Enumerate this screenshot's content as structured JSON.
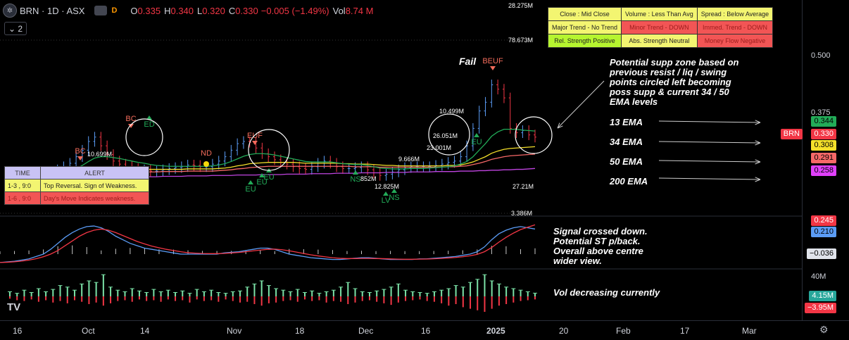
{
  "header": {
    "symbol": "BRN · 1D · ASX",
    "logo_glyph": "✲",
    "d_label": "D",
    "o_label": "O",
    "o_value": "0.335",
    "h_label": "H",
    "h_value": "0.340",
    "l_label": "L",
    "l_value": "0.320",
    "c_label": "C",
    "c_value": "0.330",
    "change": "−0.005 (−1.49%)",
    "vol_label": "Vol",
    "vol_value": "8.74 M",
    "collapse_icon": "chevron-down",
    "collapse_count": "2"
  },
  "status_table": [
    [
      {
        "text": "Close : Mid Close",
        "bg": "#f3f571",
        "fg": "#222"
      },
      {
        "text": "Volume : Less Than Avg",
        "bg": "#f3f571",
        "fg": "#222"
      },
      {
        "text": "Spread : Below Average",
        "bg": "#f3f571",
        "fg": "#222"
      }
    ],
    [
      {
        "text": "Major Trend - No Trend",
        "bg": "#f3f571",
        "fg": "#222"
      },
      {
        "text": "Minor Trend - DOWN",
        "bg": "#f25555",
        "fg": "#9b1c1c"
      },
      {
        "text": "Immed. Trend - DOWN",
        "bg": "#f25555",
        "fg": "#9b1c1c"
      }
    ],
    [
      {
        "text": "Rel. Strength Positive",
        "bg": "#b6f52f",
        "fg": "#222"
      },
      {
        "text": "Abs. Strength Neutral",
        "bg": "#f3f571",
        "fg": "#222"
      },
      {
        "text": "Money Flow Negative",
        "bg": "#f25555",
        "fg": "#9b1c1c"
      }
    ]
  ],
  "alert_table": {
    "headers": [
      "TIME",
      "ALERT"
    ],
    "rows": [
      {
        "time": "1-3  , 9:0",
        "alert": "Top Reversal. Sign of Weakness.",
        "bg": "#f3f571",
        "fg": "#222"
      },
      {
        "time": "1-6  , 9:0",
        "alert": "Day's Move Indicates weakness.",
        "bg": "#f25555",
        "fg": "#9b1c1c"
      }
    ],
    "header_bg": "#c9c3f5"
  },
  "annotations": {
    "zone_text": [
      "Potential supp zone based on",
      "previous resist / liq / swing",
      "points circled left becoming",
      "poss supp & current 34 / 50",
      "EMA levels"
    ],
    "ema_13": "13 EMA",
    "ema_34": "34 EMA",
    "ema_50": "50 EMA",
    "ema_200": "200 EMA",
    "macd_text": [
      "Signal crossed down.",
      "Potential ST p/back.",
      "Overall above centre",
      "wider view."
    ],
    "vol_text": "Vol decreasing currently",
    "fail": "Fail"
  },
  "price_scale": {
    "ticks": [
      "0.500",
      "0.375"
    ],
    "symbol_badge": "BRN",
    "badges": [
      {
        "label": "0.344",
        "color": "#22ab58",
        "fg": "#000"
      },
      {
        "label": "0.330",
        "color": "#f23645",
        "fg": "#fff"
      },
      {
        "label": "0.308",
        "color": "#f5e02a",
        "fg": "#000"
      },
      {
        "label": "0.291",
        "color": "#f76868",
        "fg": "#000"
      },
      {
        "label": "0.258",
        "color": "#e040fb",
        "fg": "#000"
      }
    ],
    "macd_badges": [
      {
        "label": "0.245",
        "color": "#f23645",
        "fg": "#fff"
      },
      {
        "label": "0.210",
        "color": "#5b9cf6",
        "fg": "#000"
      },
      {
        "label": "−0.036",
        "color": "#e0e3eb",
        "fg": "#000"
      }
    ],
    "vol_tick": "40M",
    "vol_badges": [
      {
        "label": "4.15M",
        "color": "#26a69a",
        "fg": "#fff"
      },
      {
        "label": "−3.95M",
        "color": "#f23645",
        "fg": "#fff"
      }
    ]
  },
  "x_axis": [
    "16",
    "Oct",
    "14",
    "Nov",
    "18",
    "Dec",
    "16",
    "2025",
    "20",
    "Feb",
    "17",
    "Mar"
  ],
  "chart_data": {
    "type": "candlestick",
    "price_ylim": [
      0.16,
      0.58
    ],
    "closes": [
      0.225,
      0.222,
      0.225,
      0.228,
      0.234,
      0.24,
      0.245,
      0.255,
      0.262,
      0.27,
      0.285,
      0.3,
      0.32,
      0.33,
      0.31,
      0.29,
      0.275,
      0.268,
      0.262,
      0.258,
      0.255,
      0.255,
      0.252,
      0.252,
      0.255,
      0.258,
      0.26,
      0.262,
      0.266,
      0.265,
      0.262,
      0.262,
      0.268,
      0.275,
      0.285,
      0.3,
      0.315,
      0.32,
      0.318,
      0.305,
      0.292,
      0.285,
      0.278,
      0.272,
      0.268,
      0.262,
      0.258,
      0.256,
      0.262,
      0.27,
      0.275,
      0.27,
      0.262,
      0.258,
      0.258,
      0.26,
      0.262,
      0.255,
      0.248,
      0.242,
      0.245,
      0.25,
      0.255,
      0.26,
      0.262,
      0.262,
      0.262,
      0.262,
      0.265,
      0.268,
      0.272,
      0.275,
      0.285,
      0.31,
      0.35,
      0.39,
      0.41,
      0.45,
      0.44,
      0.42,
      0.35,
      0.34,
      0.345,
      0.335,
      0.33
    ],
    "ema13": [
      0.228,
      0.228,
      0.228,
      0.229,
      0.231,
      0.234,
      0.236,
      0.24,
      0.245,
      0.25,
      0.257,
      0.265,
      0.274,
      0.282,
      0.285,
      0.285,
      0.283,
      0.281,
      0.278,
      0.275,
      0.272,
      0.27,
      0.267,
      0.265,
      0.264,
      0.263,
      0.263,
      0.263,
      0.263,
      0.263,
      0.263,
      0.263,
      0.264,
      0.266,
      0.269,
      0.274,
      0.28,
      0.286,
      0.29,
      0.292,
      0.292,
      0.291,
      0.289,
      0.286,
      0.283,
      0.28,
      0.277,
      0.274,
      0.273,
      0.273,
      0.273,
      0.273,
      0.271,
      0.269,
      0.268,
      0.267,
      0.267,
      0.265,
      0.262,
      0.259,
      0.258,
      0.257,
      0.257,
      0.257,
      0.258,
      0.258,
      0.258,
      0.259,
      0.26,
      0.261,
      0.262,
      0.264,
      0.268,
      0.274,
      0.285,
      0.3,
      0.315,
      0.332,
      0.342,
      0.348,
      0.348,
      0.348,
      0.346,
      0.345,
      0.344
    ],
    "ema34": [
      0.23,
      0.23,
      0.23,
      0.23,
      0.23,
      0.231,
      0.232,
      0.233,
      0.235,
      0.237,
      0.239,
      0.242,
      0.246,
      0.25,
      0.252,
      0.254,
      0.255,
      0.256,
      0.256,
      0.256,
      0.256,
      0.256,
      0.256,
      0.256,
      0.256,
      0.256,
      0.256,
      0.256,
      0.257,
      0.257,
      0.257,
      0.257,
      0.257,
      0.258,
      0.259,
      0.261,
      0.264,
      0.266,
      0.269,
      0.27,
      0.271,
      0.272,
      0.272,
      0.272,
      0.272,
      0.272,
      0.271,
      0.27,
      0.27,
      0.27,
      0.27,
      0.27,
      0.27,
      0.269,
      0.269,
      0.268,
      0.268,
      0.268,
      0.267,
      0.266,
      0.265,
      0.265,
      0.264,
      0.264,
      0.264,
      0.264,
      0.264,
      0.264,
      0.264,
      0.264,
      0.265,
      0.265,
      0.266,
      0.269,
      0.273,
      0.279,
      0.285,
      0.293,
      0.298,
      0.302,
      0.304,
      0.305,
      0.306,
      0.307,
      0.308
    ],
    "ema50": [
      0.23,
      0.23,
      0.23,
      0.23,
      0.23,
      0.23,
      0.231,
      0.232,
      0.233,
      0.234,
      0.236,
      0.238,
      0.24,
      0.243,
      0.245,
      0.246,
      0.247,
      0.248,
      0.249,
      0.249,
      0.25,
      0.25,
      0.25,
      0.25,
      0.251,
      0.251,
      0.251,
      0.251,
      0.252,
      0.252,
      0.252,
      0.252,
      0.252,
      0.253,
      0.254,
      0.255,
      0.257,
      0.258,
      0.26,
      0.261,
      0.262,
      0.263,
      0.263,
      0.263,
      0.263,
      0.263,
      0.263,
      0.263,
      0.263,
      0.263,
      0.263,
      0.263,
      0.263,
      0.263,
      0.263,
      0.262,
      0.262,
      0.262,
      0.262,
      0.261,
      0.261,
      0.261,
      0.261,
      0.261,
      0.261,
      0.261,
      0.261,
      0.261,
      0.261,
      0.261,
      0.262,
      0.262,
      0.263,
      0.264,
      0.267,
      0.27,
      0.274,
      0.279,
      0.282,
      0.285,
      0.287,
      0.288,
      0.289,
      0.29,
      0.291
    ],
    "ema200": [
      0.236,
      0.236,
      0.236,
      0.236,
      0.236,
      0.236,
      0.236,
      0.236,
      0.236,
      0.236,
      0.236,
      0.236,
      0.237,
      0.237,
      0.237,
      0.237,
      0.238,
      0.238,
      0.238,
      0.238,
      0.239,
      0.239,
      0.239,
      0.239,
      0.24,
      0.24,
      0.24,
      0.24,
      0.241,
      0.241,
      0.241,
      0.241,
      0.242,
      0.242,
      0.242,
      0.242,
      0.243,
      0.243,
      0.243,
      0.243,
      0.244,
      0.244,
      0.244,
      0.244,
      0.245,
      0.245,
      0.245,
      0.245,
      0.246,
      0.246,
      0.246,
      0.246,
      0.247,
      0.247,
      0.247,
      0.247,
      0.248,
      0.248,
      0.248,
      0.248,
      0.249,
      0.249,
      0.249,
      0.249,
      0.25,
      0.25,
      0.25,
      0.25,
      0.251,
      0.251,
      0.251,
      0.251,
      0.252,
      0.252,
      0.252,
      0.253,
      0.253,
      0.254,
      0.254,
      0.255,
      0.255,
      0.256,
      0.256,
      0.257,
      0.258
    ],
    "price_labels": [
      "10.699M",
      "10.499M",
      "26.051M",
      "23.001M",
      "9.666M",
      "12.825M",
      "852M",
      "27.21M",
      "28.275M",
      "78.673M",
      "3.386M"
    ],
    "signal_labels": [
      {
        "text": "BC",
        "color": "#f26b5b",
        "dir": "down"
      },
      {
        "text": "BC",
        "color": "#f26b5b",
        "dir": "down"
      },
      {
        "text": "ED",
        "color": "#22ab58",
        "dir": "up"
      },
      {
        "text": "ND",
        "color": "#f26b5b",
        "dir": "none"
      },
      {
        "text": "EUF",
        "color": "#f26b5b",
        "dir": "down"
      },
      {
        "text": "EU",
        "color": "#22ab58",
        "dir": "up"
      },
      {
        "text": "EU",
        "color": "#22ab58",
        "dir": "up"
      },
      {
        "text": "EU",
        "color": "#22ab58",
        "dir": "up"
      },
      {
        "text": "NS",
        "color": "#22ab58",
        "dir": "up"
      },
      {
        "text": "NS",
        "color": "#22ab58",
        "dir": "up"
      },
      {
        "text": "LV",
        "color": "#22ab58",
        "dir": "up"
      },
      {
        "text": "EU",
        "color": "#22ab58",
        "dir": "up"
      },
      {
        "text": "BEUF",
        "color": "#f26b5b",
        "dir": "down"
      }
    ],
    "macd_ylim": [
      -0.1,
      0.3
    ],
    "macd": [
      -0.07,
      -0.065,
      -0.06,
      -0.05,
      -0.04,
      -0.02,
      0.0,
      0.04,
      0.09,
      0.14,
      0.18,
      0.21,
      0.23,
      0.235,
      0.22,
      0.19,
      0.15,
      0.12,
      0.09,
      0.07,
      0.05,
      0.04,
      0.03,
      0.02,
      0.01,
      0.0,
      0.0,
      0.0,
      0.0,
      0.0,
      0.0,
      0.01,
      0.015,
      0.02,
      0.03,
      0.04,
      0.05,
      0.05,
      0.04,
      0.02,
      0.0,
      -0.01,
      -0.02,
      -0.03,
      -0.035,
      -0.04,
      -0.045,
      -0.045,
      -0.04,
      -0.035,
      -0.03,
      -0.03,
      -0.035,
      -0.04,
      -0.045,
      -0.045,
      -0.045,
      -0.045,
      -0.04,
      -0.04,
      -0.035,
      -0.03,
      -0.025,
      -0.02,
      -0.01,
      0.0,
      0.02,
      0.06,
      0.12,
      0.17,
      0.2,
      0.22,
      0.23,
      0.22,
      0.21
    ],
    "signal": [
      -0.07,
      -0.068,
      -0.064,
      -0.058,
      -0.05,
      -0.038,
      -0.022,
      0.0,
      0.03,
      0.07,
      0.11,
      0.15,
      0.18,
      0.2,
      0.21,
      0.2,
      0.18,
      0.155,
      0.13,
      0.105,
      0.085,
      0.067,
      0.053,
      0.04,
      0.03,
      0.02,
      0.012,
      0.008,
      0.005,
      0.004,
      0.004,
      0.006,
      0.01,
      0.014,
      0.02,
      0.027,
      0.034,
      0.04,
      0.042,
      0.037,
      0.028,
      0.017,
      0.005,
      -0.006,
      -0.015,
      -0.023,
      -0.03,
      -0.035,
      -0.037,
      -0.037,
      -0.036,
      -0.036,
      -0.037,
      -0.038,
      -0.04,
      -0.042,
      -0.043,
      -0.043,
      -0.042,
      -0.041,
      -0.039,
      -0.036,
      -0.032,
      -0.028,
      -0.022,
      -0.014,
      -0.002,
      0.02,
      0.055,
      0.1,
      0.14,
      0.175,
      0.205,
      0.225,
      0.245
    ],
    "volume_ylim": [
      -40,
      40
    ],
    "volume_up": [
      6,
      4,
      8,
      5,
      10,
      6,
      9,
      14,
      12,
      8,
      16,
      20,
      18,
      28,
      12,
      8,
      6,
      10,
      7,
      5,
      9,
      6,
      8,
      5,
      7,
      4,
      9,
      6,
      8,
      5,
      4,
      6,
      7,
      12,
      16,
      20,
      14,
      10,
      8,
      6,
      9,
      5,
      7,
      4,
      6,
      8,
      12,
      18,
      10,
      6,
      5,
      7,
      9,
      12,
      16,
      8,
      6,
      5,
      4,
      6,
      8,
      10,
      14,
      12,
      18,
      22,
      28,
      20,
      16,
      12,
      10,
      8,
      6,
      4.15
    ],
    "volume_down": [
      -3,
      -5,
      -6,
      -4,
      -7,
      -5,
      -8,
      -6,
      -9,
      -5,
      -7,
      -10,
      -8,
      -12,
      -9,
      -6,
      -5,
      -7,
      -4,
      -6,
      -5,
      -7,
      -4,
      -6,
      -5,
      -8,
      -4,
      -6,
      -5,
      -7,
      -4,
      -6,
      -8,
      -7,
      -10,
      -12,
      -9,
      -8,
      -6,
      -5,
      -7,
      -4,
      -6,
      -5,
      -8,
      -6,
      -7,
      -10,
      -8,
      -6,
      -5,
      -7,
      -9,
      -11,
      -8,
      -6,
      -5,
      -4,
      -6,
      -7,
      -9,
      -12,
      -10,
      -14,
      -16,
      -18,
      -20,
      -16,
      -12,
      -10,
      -8,
      -6,
      -5,
      -3.95
    ]
  }
}
